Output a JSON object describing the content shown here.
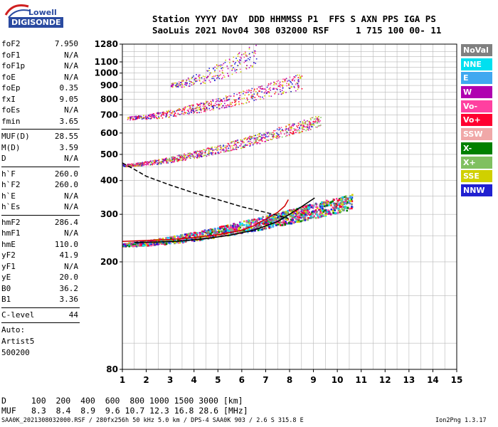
{
  "logo": {
    "brand_top": "Lowell",
    "brand_bottom": "DIGISONDE"
  },
  "header": {
    "line1": "Station YYYY DAY  DDD HHMMSS P1  FFS S AXN PPS IGA PS",
    "line2": "SaoLuis 2021 Nov04 308 032000 RSF     1 715 100 00- 11"
  },
  "parameters": [
    {
      "label": "foF2",
      "value": "7.950"
    },
    {
      "label": "foF1",
      "value": "N/A"
    },
    {
      "label": "foF1p",
      "value": "N/A"
    },
    {
      "label": "foE",
      "value": "N/A"
    },
    {
      "label": "foEp",
      "value": "0.35"
    },
    {
      "label": "fxI",
      "value": "9.05"
    },
    {
      "label": "foEs",
      "value": "N/A"
    },
    {
      "label": "fmin",
      "value": "3.65"
    },
    {
      "sep": true
    },
    {
      "label": "MUF(D)",
      "value": "28.55"
    },
    {
      "label": "M(D)",
      "value": "3.59"
    },
    {
      "label": "D",
      "value": "N/A"
    },
    {
      "sep": true
    },
    {
      "label": "h`F",
      "value": "260.0"
    },
    {
      "label": "h`F2",
      "value": "260.0"
    },
    {
      "label": "h`E",
      "value": "N/A"
    },
    {
      "label": "h`Es",
      "value": "N/A"
    },
    {
      "sep": true
    },
    {
      "label": "hmF2",
      "value": "286.4"
    },
    {
      "label": "hmF1",
      "value": "N/A"
    },
    {
      "label": "hmE",
      "value": "110.0"
    },
    {
      "label": "yF2",
      "value": "41.9"
    },
    {
      "label": "yF1",
      "value": "N/A"
    },
    {
      "label": "yE",
      "value": "20.0"
    },
    {
      "label": "B0",
      "value": "36.2"
    },
    {
      "label": "B1",
      "value": "3.36"
    },
    {
      "sep": true
    },
    {
      "label": "C-level",
      "value": "44"
    },
    {
      "sep": true
    },
    {
      "text": "Auto:"
    },
    {
      "text": "Artist5"
    },
    {
      "text": "500200"
    }
  ],
  "legend": [
    {
      "label": "NoVal",
      "color": "#808080"
    },
    {
      "label": "NNE",
      "color": "#00e0f0"
    },
    {
      "label": "E",
      "color": "#40a8f0"
    },
    {
      "label": "W",
      "color": "#b000b0"
    },
    {
      "label": "Vo-",
      "color": "#ff40a0"
    },
    {
      "label": "Vo+",
      "color": "#ff0030"
    },
    {
      "label": "SSW",
      "color": "#f0a8a8"
    },
    {
      "label": "X-",
      "color": "#008000"
    },
    {
      "label": "X+",
      "color": "#80c060"
    },
    {
      "label": "SSE",
      "color": "#d0d000"
    },
    {
      "label": "NNW",
      "color": "#2020d0"
    }
  ],
  "bottom_table": {
    "d_label": "D",
    "d_values": "  100  200  400  600  800 1000 1500 3000 [km]",
    "muf_label": "MUF",
    "muf_values": "8.3  8.4  8.9  9.6 10.7 12.3 16.8 28.6 [MHz]"
  },
  "footer": {
    "left": "SAA0K_2021308032000.RSF / 280fx256h 50 kHz 5.0 km / DPS-4 SAA0K 903 / 2.6 S 315.8 E",
    "right": "Ion2Png 1.3.17"
  },
  "chart_data": {
    "type": "scatter",
    "title": "",
    "xlabel": "",
    "ylabel": "",
    "xlim": [
      1,
      15
    ],
    "ylim": [
      80,
      1280
    ],
    "x_ticks": [
      1,
      2,
      3,
      4,
      5,
      6,
      7,
      8,
      9,
      10,
      11,
      12,
      13,
      14,
      15
    ],
    "y_ticks": [
      80,
      200,
      300,
      400,
      500,
      600,
      700,
      800,
      900,
      1000,
      1100,
      1280
    ],
    "y_scale": "log",
    "grid": true,
    "traces": [
      {
        "name": "O-trace",
        "color": "#d00000",
        "points": [
          [
            1.0,
            238
          ],
          [
            2.0,
            240
          ],
          [
            3.0,
            242
          ],
          [
            4.0,
            246
          ],
          [
            5.0,
            252
          ],
          [
            6.0,
            262
          ],
          [
            6.5,
            272
          ],
          [
            7.0,
            288
          ],
          [
            7.5,
            305
          ],
          [
            7.8,
            322
          ],
          [
            7.95,
            340
          ]
        ]
      },
      {
        "name": "X-trace",
        "color": "#000000",
        "points": [
          [
            1.5,
            236
          ],
          [
            2.5,
            237
          ],
          [
            3.5,
            239
          ],
          [
            4.5,
            244
          ],
          [
            5.5,
            251
          ],
          [
            6.5,
            262
          ],
          [
            7.5,
            282
          ],
          [
            8.0,
            300
          ],
          [
            8.5,
            320
          ],
          [
            9.05,
            345
          ]
        ]
      },
      {
        "name": "Profile",
        "color": "#000000",
        "style": "dashed",
        "points": [
          [
            1.0,
            465
          ],
          [
            1.5,
            440
          ],
          [
            2.0,
            415
          ],
          [
            3.0,
            385
          ],
          [
            4.0,
            360
          ],
          [
            5.0,
            340
          ],
          [
            6.0,
            320
          ],
          [
            7.0,
            305
          ],
          [
            7.95,
            290
          ]
        ]
      }
    ],
    "echo_bands": [
      {
        "label": "first-hop",
        "x_range": [
          1.0,
          10.6
        ],
        "h_start": 232,
        "h_end": 330,
        "spread": 40,
        "colors": [
          "#ff0030",
          "#ff40a0",
          "#2020d0",
          "#b000b0",
          "#008000",
          "#80c060",
          "#00e0f0",
          "#40a8f0",
          "#d0d000",
          "#808080"
        ]
      },
      {
        "label": "second-hop",
        "x_range": [
          1.0,
          9.3
        ],
        "h_start": 455,
        "h_end": 660,
        "spread": 60,
        "colors": [
          "#ff0030",
          "#ff40a0",
          "#2020d0",
          "#b000b0",
          "#d0d000",
          "#80c060"
        ]
      },
      {
        "label": "third-hop",
        "x_range": [
          1.2,
          8.5
        ],
        "h_start": 680,
        "h_end": 920,
        "spread": 110,
        "colors": [
          "#2020d0",
          "#b000b0",
          "#d0d000",
          "#ff40a0",
          "#ff0030"
        ]
      },
      {
        "label": "upper-scatter",
        "x_range": [
          3.0,
          6.6
        ],
        "h_start": 900,
        "h_end": 1150,
        "spread": 200,
        "colors": [
          "#b000b0",
          "#ff40a0",
          "#d0d000",
          "#2020d0"
        ]
      }
    ]
  }
}
